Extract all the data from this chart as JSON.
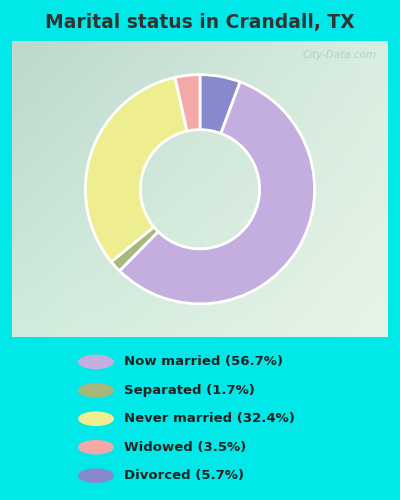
{
  "title": "Marital status in Crandall, TX",
  "categories": [
    "Now married",
    "Separated",
    "Never married",
    "Widowed",
    "Divorced"
  ],
  "values": [
    56.7,
    1.7,
    32.4,
    3.5,
    5.7
  ],
  "colors": [
    "#c4aee0",
    "#a8b87a",
    "#eeee90",
    "#f4a8a8",
    "#8888cc"
  ],
  "legend_labels": [
    "Now married (56.7%)",
    "Separated (1.7%)",
    "Never married (32.4%)",
    "Widowed (3.5%)",
    "Divorced (5.7%)"
  ],
  "plot_order": [
    4,
    0,
    1,
    2,
    3
  ],
  "bg_cyan": "#00e8e8",
  "bg_chart_tl": "#c4ddd0",
  "bg_chart_br": "#e0f0e0",
  "title_color": "#333333",
  "title_fontsize": 13.5,
  "watermark": "City-Data.com",
  "donut_width": 0.48,
  "startangle": 90
}
